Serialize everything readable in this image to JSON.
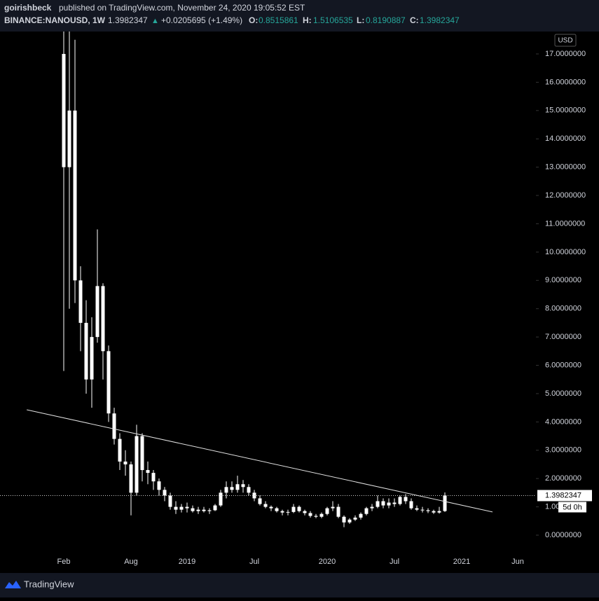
{
  "header": {
    "user": "goirishbeck",
    "published": "published on TradingView.com, November 24, 2020 19:05:52 EST",
    "symbol": "BINANCE:NANOUSD, 1W",
    "change": "+0.0205695 (+1.49%)",
    "o_label": "O:",
    "h_label": "H:",
    "l_label": "L:",
    "c_label": "C:"
  },
  "footer": {
    "brand": "TradingView"
  },
  "chart_data": {
    "type": "candlestick",
    "currency": "USD",
    "countdown": "5d 0h",
    "color": "#ffffff",
    "categories": [
      null,
      null,
      null,
      null,
      null,
      null,
      null,
      null,
      null,
      null,
      null,
      "Feb",
      null,
      null,
      null,
      null,
      null,
      null,
      null,
      null,
      null,
      null,
      null,
      "Aug",
      null,
      null,
      null,
      null,
      null,
      null,
      null,
      null,
      null,
      "2019",
      null,
      null,
      null,
      null,
      null,
      null,
      null,
      null,
      null,
      null,
      null,
      "Jul",
      null,
      null,
      null,
      null,
      null,
      null,
      null,
      null,
      null,
      null,
      null,
      null,
      "2020",
      null,
      null,
      null,
      null,
      null,
      null,
      null,
      null,
      null,
      null,
      null,
      "Jul",
      null,
      null,
      null,
      null,
      null,
      null,
      null,
      null,
      null,
      null,
      null,
      "2021",
      null,
      null,
      null,
      null,
      null,
      null,
      null,
      null,
      null,
      "Jun",
      null,
      null
    ],
    "candles": [
      null,
      null,
      null,
      null,
      null,
      null,
      null,
      null,
      null,
      null,
      null,
      [
        17,
        19,
        5.8,
        13
      ],
      [
        13,
        18,
        8,
        15
      ],
      [
        15,
        17.5,
        8.2,
        9
      ],
      [
        9,
        9.5,
        6.5,
        7.5
      ],
      [
        7.5,
        8.3,
        5,
        5.5
      ],
      [
        5.5,
        7.7,
        4.5,
        7
      ],
      [
        7,
        10.8,
        6.8,
        8.8
      ],
      [
        8.8,
        8.9,
        5.5,
        6.5
      ],
      [
        6.5,
        6.7,
        4,
        4.3
      ],
      [
        4.3,
        4.5,
        3.2,
        3.4
      ],
      [
        3.4,
        3.6,
        2.3,
        2.6
      ],
      [
        2.6,
        3,
        2.1,
        2.5
      ],
      [
        2.5,
        2.6,
        0.7,
        1.5
      ],
      [
        1.5,
        3.9,
        1.4,
        3.5
      ],
      [
        3.5,
        3.6,
        1.9,
        2.3
      ],
      [
        2.3,
        2.6,
        1.8,
        2.2
      ],
      [
        2.2,
        2.3,
        1.6,
        1.9
      ],
      [
        1.9,
        2,
        1.4,
        1.6
      ],
      [
        1.6,
        1.7,
        1.2,
        1.4
      ],
      [
        1.4,
        1.5,
        0.9,
        1
      ],
      [
        1,
        1.2,
        0.75,
        0.9
      ],
      [
        0.9,
        1.1,
        0.8,
        1
      ],
      [
        1,
        1.15,
        0.8,
        0.95
      ],
      [
        0.95,
        1.05,
        0.8,
        0.85
      ],
      [
        0.85,
        1,
        0.75,
        0.9
      ],
      [
        0.9,
        1,
        0.8,
        0.85
      ],
      [
        0.85,
        0.95,
        0.75,
        0.88
      ],
      [
        0.88,
        1.1,
        0.85,
        1.05
      ],
      [
        1.05,
        1.6,
        1,
        1.5
      ],
      [
        1.5,
        1.9,
        1.3,
        1.7
      ],
      [
        1.7,
        1.9,
        1.5,
        1.6
      ],
      [
        1.6,
        2.1,
        1.5,
        1.8
      ],
      [
        1.8,
        1.95,
        1.5,
        1.7
      ],
      [
        1.7,
        1.8,
        1.4,
        1.5
      ],
      [
        1.5,
        1.6,
        1.2,
        1.3
      ],
      [
        1.3,
        1.4,
        1.05,
        1.1
      ],
      [
        1.1,
        1.2,
        0.95,
        1
      ],
      [
        1,
        1.05,
        0.85,
        0.95
      ],
      [
        0.95,
        1,
        0.8,
        0.85
      ],
      [
        0.85,
        0.9,
        0.7,
        0.8
      ],
      [
        0.8,
        0.9,
        0.7,
        0.82
      ],
      [
        0.82,
        1.1,
        0.78,
        1
      ],
      [
        1,
        1.05,
        0.8,
        0.85
      ],
      [
        0.85,
        0.9,
        0.7,
        0.78
      ],
      [
        0.78,
        0.85,
        0.62,
        0.68
      ],
      [
        0.68,
        0.75,
        0.6,
        0.65
      ],
      [
        0.65,
        0.8,
        0.6,
        0.75
      ],
      [
        0.75,
        1,
        0.7,
        0.95
      ],
      [
        0.95,
        1.2,
        0.85,
        1
      ],
      [
        1,
        1.1,
        0.6,
        0.65
      ],
      [
        0.65,
        0.7,
        0.28,
        0.45
      ],
      [
        0.45,
        0.6,
        0.4,
        0.55
      ],
      [
        0.55,
        0.7,
        0.5,
        0.62
      ],
      [
        0.62,
        0.8,
        0.55,
        0.75
      ],
      [
        0.75,
        1,
        0.7,
        0.95
      ],
      [
        0.95,
        1.1,
        0.85,
        1
      ],
      [
        1,
        1.4,
        0.95,
        1.2
      ],
      [
        1.2,
        1.3,
        0.95,
        1.05
      ],
      [
        1.05,
        1.3,
        0.95,
        1.15
      ],
      [
        1.15,
        1.3,
        1,
        1.1
      ],
      [
        1.1,
        1.4,
        1.05,
        1.35
      ],
      [
        1.35,
        1.45,
        1.1,
        1.2
      ],
      [
        1.2,
        1.3,
        0.9,
        0.95
      ],
      [
        0.95,
        1.05,
        0.85,
        0.9
      ],
      [
        0.9,
        1,
        0.8,
        0.88
      ],
      [
        0.88,
        0.95,
        0.78,
        0.85
      ],
      [
        0.85,
        0.9,
        0.75,
        0.8
      ],
      [
        0.8,
        1,
        0.76,
        0.85
      ],
      [
        0.8515861,
        1.5106535,
        0.8190887,
        1.3982347
      ],
      null,
      null,
      null,
      null,
      null,
      null,
      null,
      null,
      null,
      null,
      null,
      null,
      null,
      null,
      null
    ],
    "trendline": {
      "x": [
        4.4,
        87.5
      ],
      "y": [
        4.43,
        0.82
      ]
    },
    "ylim": [
      -0.2,
      17.6
    ],
    "yticks": [
      {
        "value": 0,
        "label": "0.0000000"
      },
      {
        "value": 1,
        "label": "1.0000000"
      },
      {
        "value": 2,
        "label": "2.0000000"
      },
      {
        "value": 3,
        "label": "3.0000000"
      },
      {
        "value": 4,
        "label": "4.0000000"
      },
      {
        "value": 5,
        "label": "5.0000000"
      },
      {
        "value": 6,
        "label": "6.0000000"
      },
      {
        "value": 7,
        "label": "7.0000000"
      },
      {
        "value": 8,
        "label": "8.0000000"
      },
      {
        "value": 9,
        "label": "9.0000000"
      },
      {
        "value": 10,
        "label": "10.0000000"
      },
      {
        "value": 11,
        "label": "11.0000000"
      },
      {
        "value": 12,
        "label": "12.0000000"
      },
      {
        "value": 13,
        "label": "13.0000000"
      },
      {
        "value": 14,
        "label": "14.0000000"
      },
      {
        "value": 15,
        "label": "15.0000000"
      },
      {
        "value": 16,
        "label": "16.0000000"
      },
      {
        "value": 17,
        "label": "17.0000000"
      }
    ]
  }
}
